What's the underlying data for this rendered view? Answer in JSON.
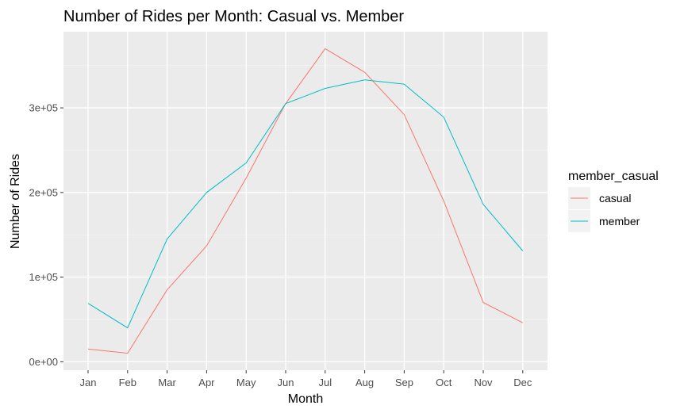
{
  "chart_data": {
    "type": "line",
    "title": "Number of Rides per Month: Casual vs. Member",
    "xlabel": "Month",
    "ylabel": "Number of Rides",
    "categories": [
      "Jan",
      "Feb",
      "Mar",
      "Apr",
      "May",
      "Jun",
      "Jul",
      "Aug",
      "Sep",
      "Oct",
      "Nov",
      "Dec"
    ],
    "yticks": [
      0,
      100000,
      200000,
      300000
    ],
    "ytick_labels": [
      "0e+00",
      "1e+05",
      "2e+05",
      "3e+05"
    ],
    "ylim": [
      -10000,
      390000
    ],
    "legend_title": "member_casual",
    "legend_position": "right",
    "series": [
      {
        "name": "casual",
        "color": "#F8766D",
        "values": [
          15000,
          10000,
          85000,
          137000,
          217000,
          305000,
          370000,
          342000,
          292000,
          190000,
          70000,
          46000
        ]
      },
      {
        "name": "member",
        "color": "#00BFC4",
        "values": [
          69000,
          40000,
          145000,
          200000,
          235000,
          305000,
          323000,
          333000,
          328000,
          289000,
          186000,
          131000
        ]
      }
    ]
  }
}
